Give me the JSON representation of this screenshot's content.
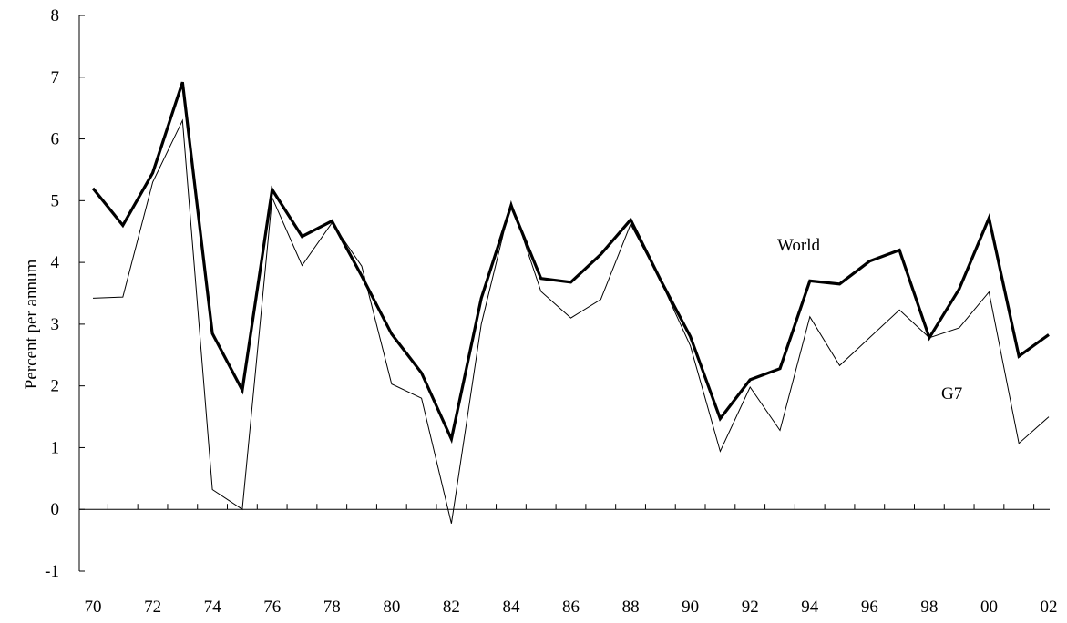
{
  "chart_data": {
    "type": "line",
    "title": "",
    "xlabel": "",
    "ylabel": "Percent per annum",
    "ylim": [
      -1,
      8
    ],
    "yticks": [
      -1,
      0,
      1,
      2,
      3,
      4,
      5,
      6,
      7,
      8
    ],
    "xtick_labels": [
      "70",
      "72",
      "74",
      "76",
      "78",
      "80",
      "82",
      "84",
      "86",
      "88",
      "90",
      "92",
      "94",
      "96",
      "98",
      "00",
      "02"
    ],
    "x": [
      1970,
      1971,
      1972,
      1973,
      1974,
      1975,
      1976,
      1977,
      1978,
      1979,
      1980,
      1981,
      1982,
      1983,
      1984,
      1985,
      1986,
      1987,
      1988,
      1989,
      1990,
      1991,
      1992,
      1993,
      1994,
      1995,
      1996,
      1997,
      1998,
      1999,
      2000,
      2001,
      2002
    ],
    "grid": false,
    "legend": "none",
    "series": [
      {
        "name": "World",
        "color": "#000000",
        "weight": "bold",
        "values": [
          5.2,
          4.6,
          5.45,
          6.92,
          2.85,
          1.93,
          5.18,
          4.42,
          4.67,
          3.78,
          2.84,
          2.21,
          1.14,
          3.42,
          4.92,
          3.74,
          3.68,
          4.13,
          4.69,
          3.72,
          2.8,
          1.47,
          2.1,
          2.28,
          3.7,
          3.65,
          4.02,
          4.2,
          2.78,
          3.57,
          4.72,
          2.48,
          2.83
        ]
      },
      {
        "name": "G7",
        "color": "#000000",
        "weight": "thin",
        "values": [
          3.42,
          3.44,
          5.3,
          6.3,
          0.32,
          0.0,
          5.05,
          3.95,
          4.64,
          3.94,
          2.03,
          1.8,
          -0.23,
          3.0,
          4.98,
          3.53,
          3.1,
          3.4,
          4.62,
          3.71,
          2.65,
          0.94,
          1.98,
          1.28,
          3.12,
          2.33,
          2.78,
          3.23,
          2.78,
          2.94,
          3.52,
          1.07,
          1.5
        ]
      }
    ]
  }
}
